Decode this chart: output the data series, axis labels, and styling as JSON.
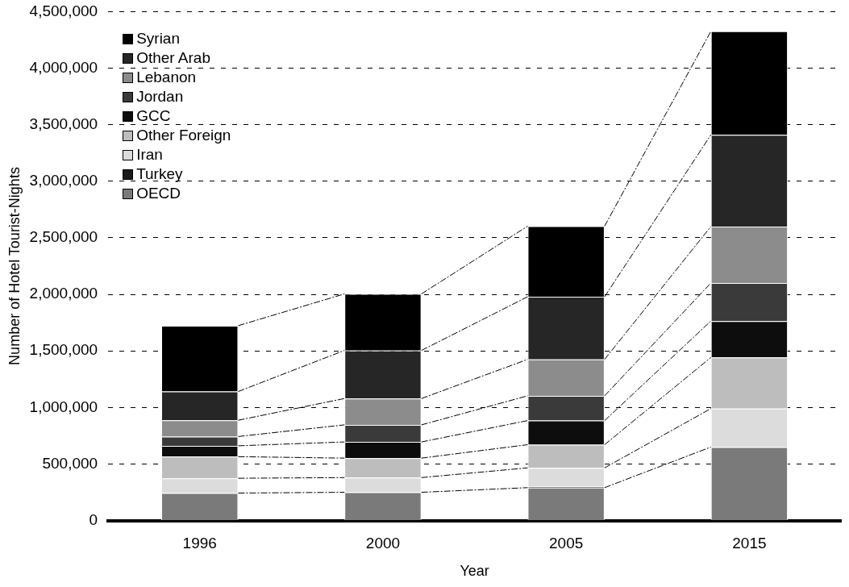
{
  "chart_data": {
    "type": "bar",
    "stacked": true,
    "xlabel": "Year",
    "ylabel": "Number of Hotel Tourist-Nights",
    "categories": [
      "1996",
      "2000",
      "2005",
      "2015"
    ],
    "series": [
      {
        "name": "OECD",
        "color": "#7a7a7a",
        "values": [
          243000,
          250000,
          291000,
          650000
        ]
      },
      {
        "name": "Turkey",
        "color": "#1a1a1a",
        "values": [
          null,
          null,
          10000,
          null
        ]
      },
      {
        "name": "Iran",
        "color": "#dcdcdc",
        "values": [
          131000,
          130000,
          165000,
          340000
        ]
      },
      {
        "name": "Other Foreign",
        "color": "#bdbdbd",
        "values": [
          191000,
          172000,
          205000,
          452000
        ]
      },
      {
        "name": "GCC",
        "color": "#0d0d0d",
        "values": [
          96000,
          143000,
          213000,
          322000
        ]
      },
      {
        "name": "Jordan",
        "color": "#3a3a3a",
        "values": [
          82000,
          151000,
          219000,
          336000
        ]
      },
      {
        "name": "Lebanon",
        "color": "#8c8c8c",
        "values": [
          144000,
          233000,
          322000,
          500000
        ]
      },
      {
        "name": "Other Arab",
        "color": "#262626",
        "values": [
          254000,
          425000,
          554000,
          810000
        ]
      },
      {
        "name": "Syrian",
        "color": "#000000",
        "values": [
          582000,
          500000,
          624000,
          916000
        ]
      }
    ],
    "ylim": [
      0,
      4500000
    ],
    "yticks": [
      0,
      {
        "value": 500000,
        "label": "500,000"
      },
      {
        "value": 1000000,
        "label": "1,000,000"
      },
      {
        "value": 1500000,
        "label": "1,500,000"
      },
      {
        "value": 2000000,
        "label": "2,000,000"
      },
      {
        "value": 2500000,
        "label": "2,500,000"
      },
      {
        "value": 3000000,
        "label": "3,000,000"
      },
      {
        "value": 3500000,
        "label": "3,500,000"
      },
      {
        "value": 4000000,
        "label": "4,000,000"
      },
      {
        "value": 4500000,
        "label": "4,500,000"
      }
    ],
    "grid": "y",
    "legend": "top left"
  }
}
